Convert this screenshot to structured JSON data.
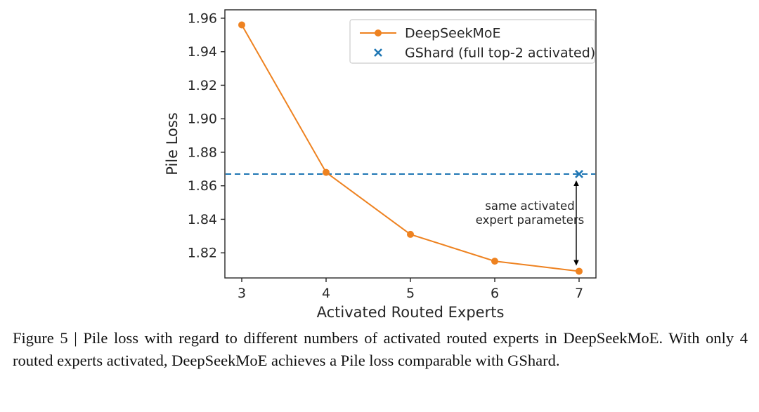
{
  "figure": {
    "caption": "Figure 5 | Pile loss with regard to different numbers of activated routed experts in DeepSeekMoE. With only 4 routed experts activated, DeepSeekMoE achieves a Pile loss comparable with GShard."
  },
  "chart_data": {
    "type": "line",
    "title": "",
    "xlabel": "Activated Routed Experts",
    "ylabel": "Pile Loss",
    "x": [
      3,
      4,
      5,
      6,
      7
    ],
    "series": [
      {
        "name": "DeepSeekMoE",
        "color": "#ee8220",
        "marker": "circle",
        "values": [
          1.956,
          1.868,
          1.831,
          1.815,
          1.809
        ]
      }
    ],
    "reference_line": {
      "name": "GShard (full top-2 activated)",
      "color": "#1f77b4",
      "style": "dashed",
      "y": 1.867,
      "marker": "x",
      "marker_x": 7
    },
    "xticks": [
      "3",
      "4",
      "5",
      "6",
      "7"
    ],
    "yticks": [
      "1.82",
      "1.84",
      "1.86",
      "1.88",
      "1.90",
      "1.92",
      "1.94",
      "1.96"
    ],
    "xlim": [
      2.8,
      7.2
    ],
    "ylim": [
      1.805,
      1.965
    ],
    "grid": false,
    "legend": {
      "position": "upper center",
      "entries": [
        "DeepSeekMoE",
        "GShard (full top-2 activated)"
      ]
    },
    "annotation": {
      "lines": [
        "same activated",
        "expert parameters"
      ],
      "arrow_x": 7,
      "arrow_from_y": 1.867,
      "arrow_to_y": 1.809
    }
  }
}
